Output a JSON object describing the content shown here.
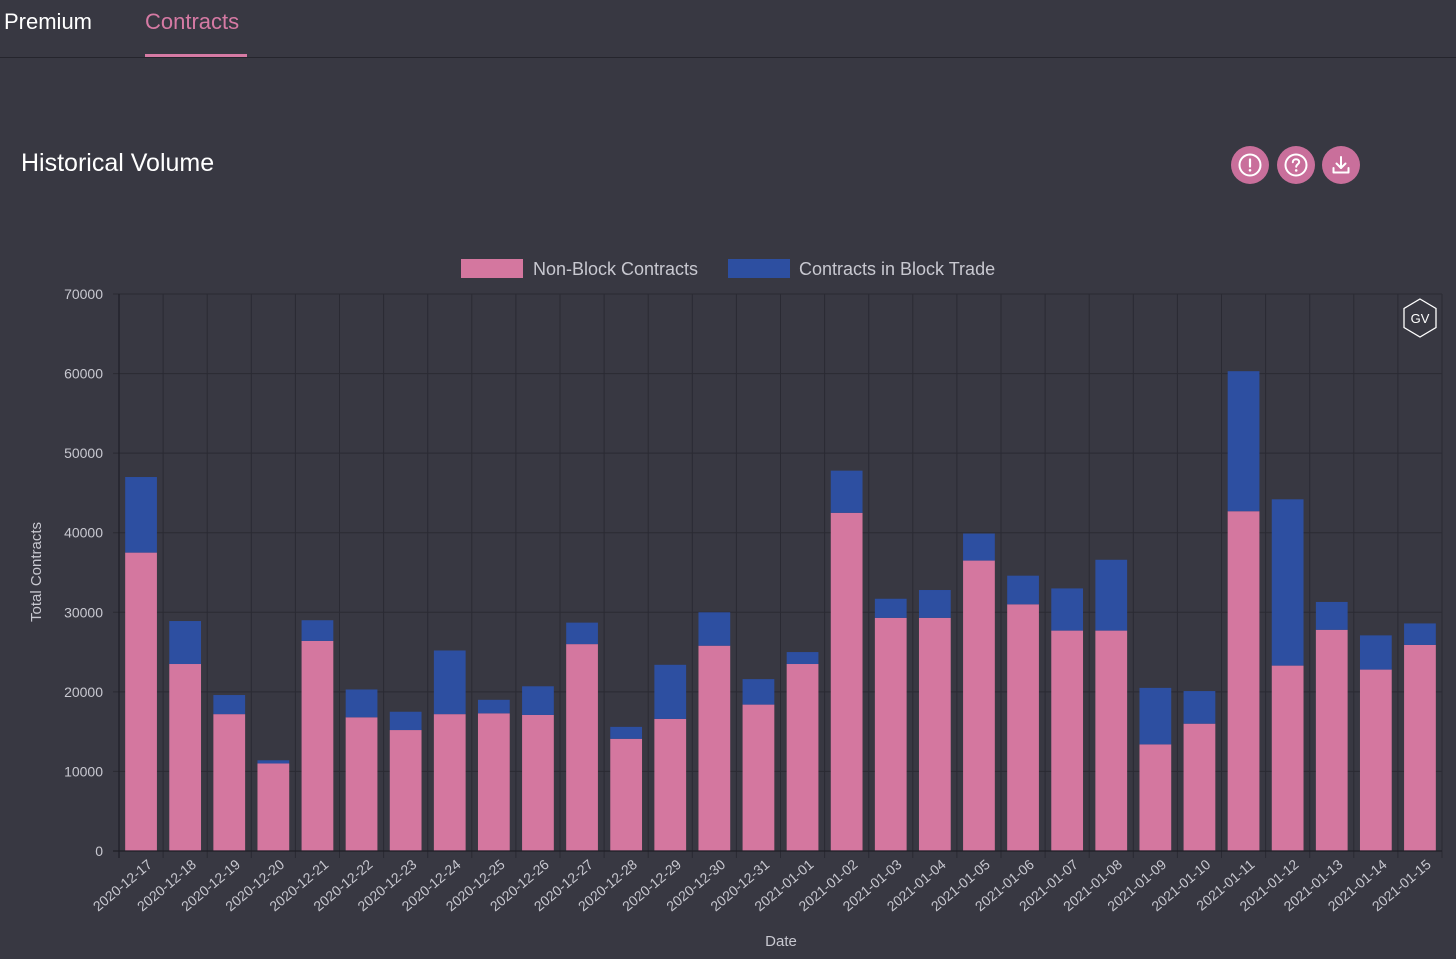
{
  "tabs": [
    {
      "label": "Premium"
    },
    {
      "label": "Contracts"
    }
  ],
  "header": {
    "title": "Historical Volume",
    "icons": [
      "alert-icon",
      "help-icon",
      "download-icon"
    ]
  },
  "watermark": {
    "text": "GV"
  },
  "colors": {
    "background": "#383842",
    "accent": "#d67aa4",
    "non_block": "#d4779f",
    "block": "#2d4fa1",
    "button": "#c96f9b"
  },
  "chart_data": {
    "type": "bar",
    "stacked": true,
    "title": "",
    "xlabel": "Date",
    "ylabel": "Total Contracts",
    "ylim": [
      0,
      70000
    ],
    "yticks": [
      0,
      10000,
      20000,
      30000,
      40000,
      50000,
      60000,
      70000
    ],
    "legend_position": "top-center",
    "grid": true,
    "categories": [
      "2020-12-17",
      "2020-12-18",
      "2020-12-19",
      "2020-12-20",
      "2020-12-21",
      "2020-12-22",
      "2020-12-23",
      "2020-12-24",
      "2020-12-25",
      "2020-12-26",
      "2020-12-27",
      "2020-12-28",
      "2020-12-29",
      "2020-12-30",
      "2020-12-31",
      "2021-01-01",
      "2021-01-02",
      "2021-01-03",
      "2021-01-04",
      "2021-01-05",
      "2021-01-06",
      "2021-01-07",
      "2021-01-08",
      "2021-01-09",
      "2021-01-10",
      "2021-01-11",
      "2021-01-12",
      "2021-01-13",
      "2021-01-14",
      "2021-01-15"
    ],
    "series": [
      {
        "name": "Non-Block Contracts",
        "color": "#d4779f",
        "values": [
          37500,
          23500,
          17200,
          11000,
          26400,
          16800,
          15200,
          17200,
          17300,
          17100,
          26000,
          14100,
          16600,
          25800,
          18400,
          23500,
          42500,
          29300,
          29300,
          36500,
          31000,
          27700,
          27700,
          13400,
          16000,
          42700,
          23300,
          27800,
          22800,
          25900
        ]
      },
      {
        "name": "Contracts in Block Trade",
        "color": "#2d4fa1",
        "values": [
          9500,
          5400,
          2400,
          400,
          2600,
          3500,
          2300,
          8000,
          1700,
          3600,
          2700,
          1500,
          6800,
          4200,
          3200,
          1500,
          5300,
          2400,
          3500,
          3400,
          3600,
          5300,
          8900,
          7100,
          4100,
          17600,
          20900,
          3500,
          4300,
          2700
        ]
      }
    ]
  }
}
